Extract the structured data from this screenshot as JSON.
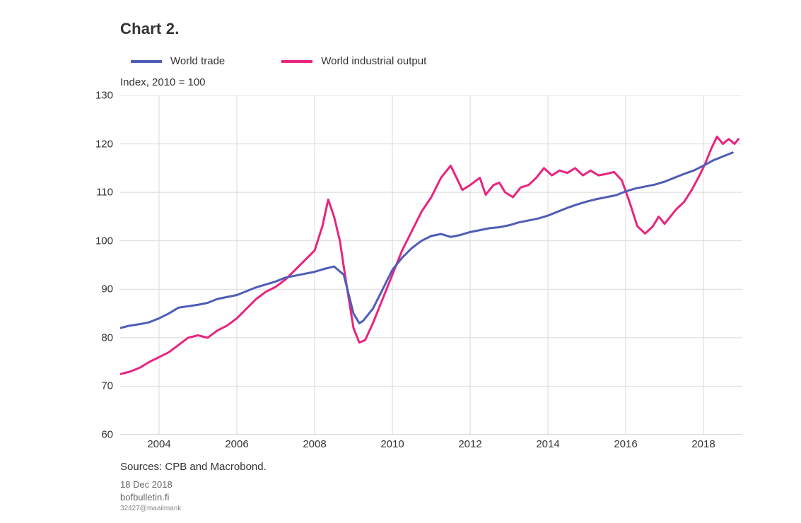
{
  "title": "Chart 2.",
  "ylabel": "Index, 2010 = 100",
  "legend": {
    "series_a": "World trade",
    "series_b": "World industrial output"
  },
  "axes": {
    "ymin": 60,
    "ymax": 130,
    "yticks": [
      60,
      70,
      80,
      90,
      100,
      110,
      120,
      130
    ],
    "xticks": [
      2004,
      2006,
      2008,
      2010,
      2012,
      2014,
      2016,
      2018
    ],
    "years_start": 2003,
    "years_end": 2019,
    "grid_color": "#d9d9d9",
    "axis_color": "#b0b0b0",
    "background": "#ffffff"
  },
  "series": {
    "world_trade": {
      "color": "#4e5db6",
      "width": 3,
      "points": [
        [
          2003.0,
          82
        ],
        [
          2003.25,
          82.5
        ],
        [
          2003.5,
          82.8
        ],
        [
          2003.75,
          83.2
        ],
        [
          2004.0,
          84
        ],
        [
          2004.25,
          85
        ],
        [
          2004.5,
          86.2
        ],
        [
          2004.75,
          86.5
        ],
        [
          2005.0,
          86.8
        ],
        [
          2005.25,
          87.2
        ],
        [
          2005.5,
          88
        ],
        [
          2005.75,
          88.4
        ],
        [
          2006.0,
          88.8
        ],
        [
          2006.25,
          89.6
        ],
        [
          2006.5,
          90.4
        ],
        [
          2006.75,
          91
        ],
        [
          2007.0,
          91.6
        ],
        [
          2007.25,
          92.4
        ],
        [
          2007.5,
          92.8
        ],
        [
          2007.75,
          93.2
        ],
        [
          2008.0,
          93.6
        ],
        [
          2008.25,
          94.2
        ],
        [
          2008.5,
          94.7
        ],
        [
          2008.75,
          93
        ],
        [
          2009.0,
          85
        ],
        [
          2009.15,
          83
        ],
        [
          2009.25,
          83.5
        ],
        [
          2009.5,
          86
        ],
        [
          2009.75,
          90
        ],
        [
          2010.0,
          94
        ],
        [
          2010.25,
          96.5
        ],
        [
          2010.5,
          98.5
        ],
        [
          2010.75,
          100
        ],
        [
          2011.0,
          101
        ],
        [
          2011.25,
          101.4
        ],
        [
          2011.5,
          100.8
        ],
        [
          2011.75,
          101.2
        ],
        [
          2012.0,
          101.8
        ],
        [
          2012.25,
          102.2
        ],
        [
          2012.5,
          102.6
        ],
        [
          2012.75,
          102.8
        ],
        [
          2013.0,
          103.2
        ],
        [
          2013.25,
          103.8
        ],
        [
          2013.5,
          104.2
        ],
        [
          2013.75,
          104.6
        ],
        [
          2014.0,
          105.2
        ],
        [
          2014.25,
          106
        ],
        [
          2014.5,
          106.8
        ],
        [
          2014.75,
          107.5
        ],
        [
          2015.0,
          108.1
        ],
        [
          2015.25,
          108.6
        ],
        [
          2015.5,
          109
        ],
        [
          2015.75,
          109.4
        ],
        [
          2016.0,
          110.2
        ],
        [
          2016.25,
          110.8
        ],
        [
          2016.5,
          111.2
        ],
        [
          2016.75,
          111.6
        ],
        [
          2017.0,
          112.2
        ],
        [
          2017.25,
          113
        ],
        [
          2017.5,
          113.8
        ],
        [
          2017.75,
          114.5
        ],
        [
          2018.0,
          115.5
        ],
        [
          2018.25,
          116.6
        ],
        [
          2018.5,
          117.4
        ],
        [
          2018.75,
          118.2
        ]
      ]
    },
    "world_industrial_output": {
      "color": "#e9247e",
      "width": 3,
      "points": [
        [
          2003.0,
          72.5
        ],
        [
          2003.25,
          73
        ],
        [
          2003.5,
          73.8
        ],
        [
          2003.75,
          75
        ],
        [
          2004.0,
          76
        ],
        [
          2004.25,
          77
        ],
        [
          2004.5,
          78.5
        ],
        [
          2004.75,
          80
        ],
        [
          2005.0,
          80.5
        ],
        [
          2005.25,
          80
        ],
        [
          2005.5,
          81.5
        ],
        [
          2005.75,
          82.5
        ],
        [
          2006.0,
          84
        ],
        [
          2006.25,
          86
        ],
        [
          2006.5,
          88
        ],
        [
          2006.75,
          89.5
        ],
        [
          2007.0,
          90.5
        ],
        [
          2007.25,
          92
        ],
        [
          2007.5,
          94
        ],
        [
          2007.75,
          96
        ],
        [
          2008.0,
          98
        ],
        [
          2008.2,
          103
        ],
        [
          2008.35,
          108.5
        ],
        [
          2008.5,
          105
        ],
        [
          2008.65,
          100
        ],
        [
          2008.8,
          92
        ],
        [
          2009.0,
          82
        ],
        [
          2009.15,
          79
        ],
        [
          2009.3,
          79.5
        ],
        [
          2009.5,
          83
        ],
        [
          2009.75,
          88
        ],
        [
          2010.0,
          93
        ],
        [
          2010.25,
          98
        ],
        [
          2010.5,
          102
        ],
        [
          2010.75,
          106
        ],
        [
          2011.0,
          109
        ],
        [
          2011.25,
          113
        ],
        [
          2011.5,
          115.5
        ],
        [
          2011.65,
          113
        ],
        [
          2011.8,
          110.5
        ],
        [
          2012.0,
          111.5
        ],
        [
          2012.25,
          113
        ],
        [
          2012.4,
          109.5
        ],
        [
          2012.6,
          111.5
        ],
        [
          2012.75,
          112
        ],
        [
          2012.9,
          110
        ],
        [
          2013.1,
          109
        ],
        [
          2013.3,
          111
        ],
        [
          2013.5,
          111.5
        ],
        [
          2013.7,
          113
        ],
        [
          2013.9,
          115
        ],
        [
          2014.1,
          113.5
        ],
        [
          2014.3,
          114.5
        ],
        [
          2014.5,
          114
        ],
        [
          2014.7,
          115
        ],
        [
          2014.9,
          113.5
        ],
        [
          2015.1,
          114.5
        ],
        [
          2015.3,
          113.5
        ],
        [
          2015.5,
          113.8
        ],
        [
          2015.7,
          114.2
        ],
        [
          2015.9,
          112.5
        ],
        [
          2016.1,
          108
        ],
        [
          2016.3,
          103
        ],
        [
          2016.5,
          101.5
        ],
        [
          2016.7,
          103
        ],
        [
          2016.85,
          105
        ],
        [
          2017.0,
          103.5
        ],
        [
          2017.15,
          105
        ],
        [
          2017.3,
          106.5
        ],
        [
          2017.5,
          108
        ],
        [
          2017.7,
          110.5
        ],
        [
          2017.9,
          113.5
        ],
        [
          2018.05,
          116
        ],
        [
          2018.2,
          119
        ],
        [
          2018.35,
          121.5
        ],
        [
          2018.5,
          120
        ],
        [
          2018.65,
          121
        ],
        [
          2018.8,
          120
        ],
        [
          2018.9,
          121
        ]
      ]
    }
  },
  "source": "Sources: CPB and Macrobond.",
  "footer": {
    "date": "18 Dec 2018",
    "site": "bofbulletin.fi",
    "ref": "32427@maailmank"
  },
  "typography": {
    "title_fontsize": 22,
    "title_weight": 700,
    "label_fontsize": 15,
    "footer_fontsize": 13,
    "footer_color": "#666666"
  }
}
